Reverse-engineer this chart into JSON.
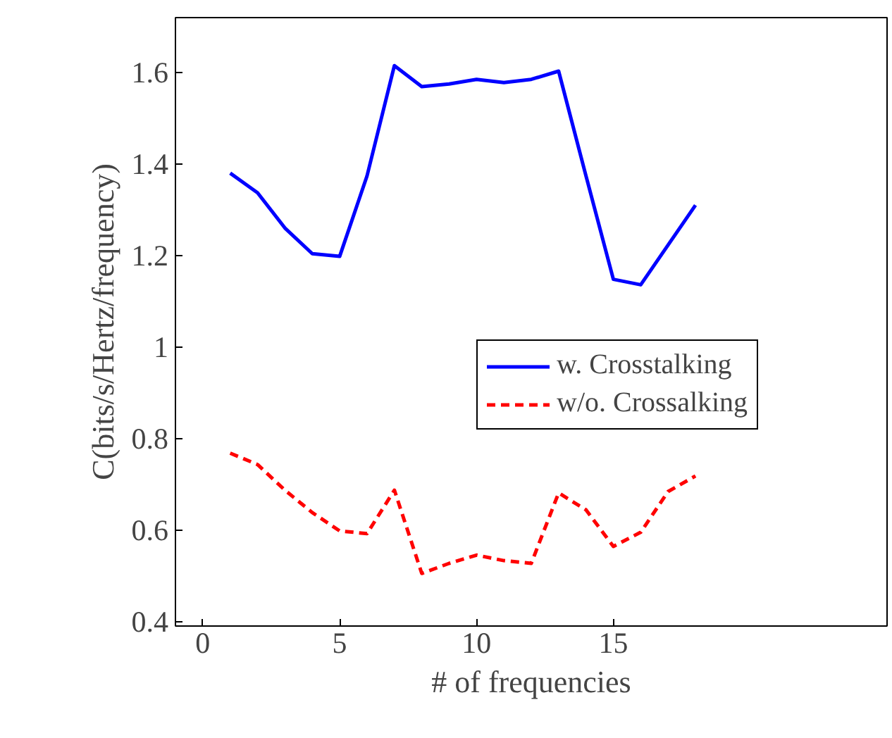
{
  "chart_data": {
    "type": "line",
    "xlabel": "# of frequencies",
    "ylabel": "C(bits/s/Hertz/frequency)",
    "x": [
      1,
      2,
      3,
      4,
      5,
      6,
      7,
      8,
      9,
      10,
      11,
      12,
      13,
      14,
      15,
      16,
      17,
      18
    ],
    "series": [
      {
        "name": "w. Crosstalking",
        "color": "#0000ff",
        "line_style": "solid",
        "values": [
          1.38,
          1.337,
          1.26,
          1.204,
          1.198,
          1.374,
          1.615,
          1.569,
          1.575,
          1.585,
          1.578,
          1.585,
          1.603,
          1.374,
          1.148,
          1.136,
          1.223,
          1.31
        ]
      },
      {
        "name": "w/o. Crossalking",
        "color": "#ff0000",
        "line_style": "dashed",
        "values": [
          0.768,
          0.743,
          0.687,
          0.638,
          0.598,
          0.592,
          0.687,
          0.505,
          0.527,
          0.545,
          0.533,
          0.527,
          0.681,
          0.644,
          0.564,
          0.595,
          0.684,
          0.718
        ]
      }
    ],
    "xlim": [
      -1,
      25
    ],
    "ylim": [
      0.39,
      1.72
    ],
    "xticks": [
      0,
      5,
      10,
      15
    ],
    "yticks": [
      0.4,
      0.6,
      0.8,
      1,
      1.2,
      1.4,
      1.6
    ],
    "grid": false,
    "legend": "right",
    "marker": "none"
  }
}
